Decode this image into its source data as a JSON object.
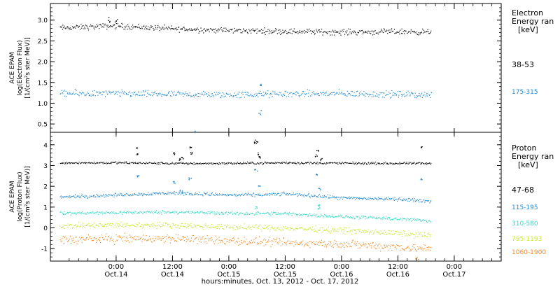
{
  "x_axis_label": "hours:minutes, Oct. 13, 2012 - Oct. 17, 2012",
  "chart_data": [
    {
      "type": "scatter",
      "panel": "electron",
      "ylabel_lines": [
        "ACE EPAM",
        "log(Electron Flux)",
        "[1/(cm²s ster MeV)]"
      ],
      "y_ticks": [
        "0.5",
        "1.0",
        "1.5",
        "2.0",
        "2.5",
        "3.0"
      ],
      "ylim": [
        0.3,
        3.4
      ],
      "legend_title_lines": [
        "Electron",
        "Energy ran",
        "[keV]"
      ],
      "x_range_hours": [
        -14,
        82
      ],
      "series": [
        {
          "name": "38-53",
          "color": "#000000",
          "x_hours_from_oct14": [
            -12,
            0,
            12,
            24,
            36,
            48,
            60,
            67
          ],
          "y_mean": [
            2.82,
            2.87,
            2.8,
            2.76,
            2.74,
            2.72,
            2.73,
            2.72
          ],
          "scatter": 0.05,
          "spikes": [
            {
              "x": -1.5,
              "y": 3.02
            },
            {
              "x": 0.0,
              "y": 2.97
            }
          ]
        },
        {
          "name": "175-315",
          "color": "#1e88d2",
          "x_hours_from_oct14": [
            -12,
            0,
            12,
            24,
            36,
            48,
            60,
            67
          ],
          "y_mean": [
            1.24,
            1.24,
            1.22,
            1.21,
            1.23,
            1.24,
            1.22,
            1.21
          ],
          "scatter": 0.06,
          "spikes": [
            {
              "x": 30.5,
              "y": 0.78
            },
            {
              "x": 30.9,
              "y": 1.42
            },
            {
              "x": 16.5,
              "y": 0.3
            }
          ]
        }
      ]
    },
    {
      "type": "scatter",
      "panel": "proton",
      "ylabel_lines": [
        "ACE EPAM",
        "log(Proton Flux)",
        "[1/(cm²s ster MeV)]"
      ],
      "y_ticks": [
        "-1",
        "0",
        "1",
        "2",
        "3",
        "4"
      ],
      "ylim": [
        -1.6,
        4.6
      ],
      "legend_title_lines": [
        "Proton",
        "Energy ran",
        "[keV]"
      ],
      "x_range_hours": [
        -14,
        82
      ],
      "series": [
        {
          "name": "47-68",
          "color": "#000000",
          "x_hours_from_oct14": [
            -12,
            0,
            12,
            24,
            36,
            48,
            60,
            67
          ],
          "y_mean": [
            3.15,
            3.15,
            3.12,
            3.12,
            3.15,
            3.13,
            3.12,
            3.12
          ],
          "scatter": 0.04,
          "spikes": [
            {
              "x": 4.5,
              "y": 3.9
            },
            {
              "x": 4.3,
              "y": 3.6
            },
            {
              "x": 12.4,
              "y": 3.6
            },
            {
              "x": 13.5,
              "y": 3.3
            },
            {
              "x": 14.0,
              "y": 3.4
            },
            {
              "x": 15.7,
              "y": 3.9
            },
            {
              "x": 15.9,
              "y": 3.6
            },
            {
              "x": 29.5,
              "y": 4.1
            },
            {
              "x": 29.8,
              "y": 4.2
            },
            {
              "x": 30.0,
              "y": 3.6
            },
            {
              "x": 30.5,
              "y": 3.4
            },
            {
              "x": 42.5,
              "y": 3.5
            },
            {
              "x": 42.9,
              "y": 3.7
            },
            {
              "x": 43.5,
              "y": 3.3
            },
            {
              "x": 65.0,
              "y": 3.9
            }
          ]
        },
        {
          "name": "115-195",
          "color": "#1e88d2",
          "x_hours_from_oct14": [
            -12,
            0,
            12,
            24,
            30,
            36,
            43,
            48,
            60,
            67
          ],
          "y_mean": [
            1.5,
            1.6,
            1.7,
            1.6,
            1.6,
            1.65,
            1.55,
            1.45,
            1.4,
            1.3
          ],
          "scatter": 0.06,
          "spikes": [
            {
              "x": 4.5,
              "y": 2.5
            },
            {
              "x": 12.4,
              "y": 2.2
            },
            {
              "x": 13.8,
              "y": 1.8
            },
            {
              "x": 15.7,
              "y": 2.4
            },
            {
              "x": 29.7,
              "y": 2.8
            },
            {
              "x": 30.3,
              "y": 2.0
            },
            {
              "x": 42.8,
              "y": 2.6
            },
            {
              "x": 43.3,
              "y": 1.9
            },
            {
              "x": 65.0,
              "y": 2.4
            }
          ]
        },
        {
          "name": "310-580",
          "color": "#35d9c4",
          "x_hours_from_oct14": [
            -12,
            0,
            12,
            24,
            36,
            43,
            48,
            60,
            67
          ],
          "y_mean": [
            0.72,
            0.75,
            0.78,
            0.72,
            0.7,
            0.62,
            0.55,
            0.45,
            0.35
          ],
          "scatter": 0.06,
          "spikes": [
            {
              "x": 29.8,
              "y": 1.0
            },
            {
              "x": 43.0,
              "y": 1.1
            },
            {
              "x": 43.2,
              "y": 0.95
            }
          ]
        },
        {
          "name": "795-1193",
          "color": "#c6ea2a",
          "x_hours_from_oct14": [
            -12,
            0,
            12,
            24,
            36,
            48,
            60,
            67
          ],
          "y_mean": [
            0.1,
            0.15,
            0.15,
            0.05,
            0.0,
            -0.1,
            -0.25,
            -0.35
          ],
          "scatter": 0.1,
          "spikes": []
        },
        {
          "name": "1060-1900",
          "color": "#f08a24",
          "x_hours_from_oct14": [
            -12,
            0,
            12,
            24,
            36,
            48,
            60,
            67
          ],
          "y_mean": [
            -0.55,
            -0.5,
            -0.5,
            -0.6,
            -0.7,
            -0.75,
            -0.9,
            -1.0
          ],
          "scatter": 0.15,
          "spikes": [
            {
              "x": 64.0,
              "y": -1.45
            }
          ]
        }
      ]
    }
  ],
  "x_ticks": [
    {
      "time": "0:00",
      "date": "Oct.14",
      "hours_from_oct14": 0
    },
    {
      "time": "12:00",
      "date": "Oct.14",
      "hours_from_oct14": 12
    },
    {
      "time": "0:00",
      "date": "Oct.15",
      "hours_from_oct14": 24
    },
    {
      "time": "12:00",
      "date": "Oct.15",
      "hours_from_oct14": 36
    },
    {
      "time": "0:00",
      "date": "Oct.16",
      "hours_from_oct14": 48
    },
    {
      "time": "12:00",
      "date": "Oct.16",
      "hours_from_oct14": 60
    },
    {
      "time": "0:00",
      "date": "Oct.17",
      "hours_from_oct14": 72
    }
  ]
}
